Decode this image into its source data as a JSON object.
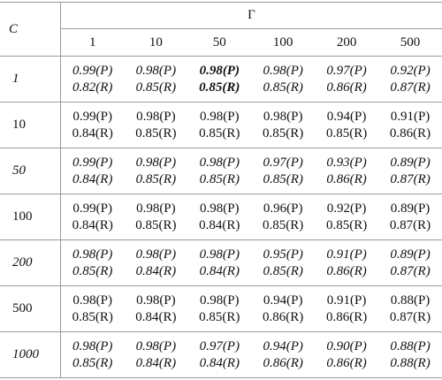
{
  "header": {
    "row_label": "C",
    "group_label": "Γ",
    "columns": [
      "1",
      "10",
      "50",
      "100",
      "200",
      "500"
    ]
  },
  "rows": [
    {
      "label": "1",
      "italic": true,
      "cells": [
        {
          "p": "0.99(P)",
          "r": "0.82(R)"
        },
        {
          "p": "0.98(P)",
          "r": "0.85(R)"
        },
        {
          "p": "0.98(P)",
          "r": "0.85(R)",
          "bold": true
        },
        {
          "p": "0.98(P)",
          "r": "0.85(R)"
        },
        {
          "p": "0.97(P)",
          "r": "0.86(R)"
        },
        {
          "p": "0.92(P)",
          "r": "0.87(R)"
        }
      ]
    },
    {
      "label": "10",
      "italic": false,
      "cells": [
        {
          "p": "0.99(P)",
          "r": "0.84(R)"
        },
        {
          "p": "0.98(P)",
          "r": "0.85(R)"
        },
        {
          "p": "0.98(P)",
          "r": "0.85(R)"
        },
        {
          "p": "0.98(P)",
          "r": "0.85(R)"
        },
        {
          "p": "0.94(P)",
          "r": "0.85(R)"
        },
        {
          "p": "0.91(P)",
          "r": "0.86(R)"
        }
      ]
    },
    {
      "label": "50",
      "italic": true,
      "cells": [
        {
          "p": "0.99(P)",
          "r": "0.84(R)"
        },
        {
          "p": "0.98(P)",
          "r": "0.85(R)"
        },
        {
          "p": "0.98(P)",
          "r": "0.85(R)"
        },
        {
          "p": "0.97(P)",
          "r": "0.85(R)"
        },
        {
          "p": "0.93(P)",
          "r": "0.86(R)"
        },
        {
          "p": "0.89(P)",
          "r": "0.87(R)"
        }
      ]
    },
    {
      "label": "100",
      "italic": false,
      "cells": [
        {
          "p": "0.99(P)",
          "r": "0.84(R)"
        },
        {
          "p": "0.98(P)",
          "r": "0.85(R)"
        },
        {
          "p": "0.98(P)",
          "r": "0.84(R)"
        },
        {
          "p": "0.96(P)",
          "r": "0.85(R)"
        },
        {
          "p": "0.92(P)",
          "r": "0.85(R)"
        },
        {
          "p": "0.89(P)",
          "r": "0.87(R)"
        }
      ]
    },
    {
      "label": "200",
      "italic": true,
      "cells": [
        {
          "p": "0.98(P)",
          "r": "0.85(R)"
        },
        {
          "p": "0.98(P)",
          "r": "0.84(R)"
        },
        {
          "p": "0.98(P)",
          "r": "0.84(R)"
        },
        {
          "p": "0.95(P)",
          "r": "0.85(R)"
        },
        {
          "p": "0.91(P)",
          "r": "0.86(R)"
        },
        {
          "p": "0.89(P)",
          "r": "0.87(R)"
        }
      ]
    },
    {
      "label": "500",
      "italic": false,
      "cells": [
        {
          "p": "0.98(P)",
          "r": "0.85(R)"
        },
        {
          "p": "0.98(P)",
          "r": "0.84(R)"
        },
        {
          "p": "0.98(P)",
          "r": "0.85(R)"
        },
        {
          "p": "0.94(P)",
          "r": "0.86(R)"
        },
        {
          "p": "0.91(P)",
          "r": "0.86(R)"
        },
        {
          "p": "0.88(P)",
          "r": "0.87(R)"
        }
      ]
    },
    {
      "label": "1000",
      "italic": true,
      "cells": [
        {
          "p": "0.98(P)",
          "r": "0.85(R)"
        },
        {
          "p": "0.98(P)",
          "r": "0.84(R)"
        },
        {
          "p": "0.97(P)",
          "r": "0.84(R)"
        },
        {
          "p": "0.94(P)",
          "r": "0.86(R)"
        },
        {
          "p": "0.90(P)",
          "r": "0.86(R)"
        },
        {
          "p": "0.88(P)",
          "r": "0.88(R)"
        }
      ]
    }
  ]
}
